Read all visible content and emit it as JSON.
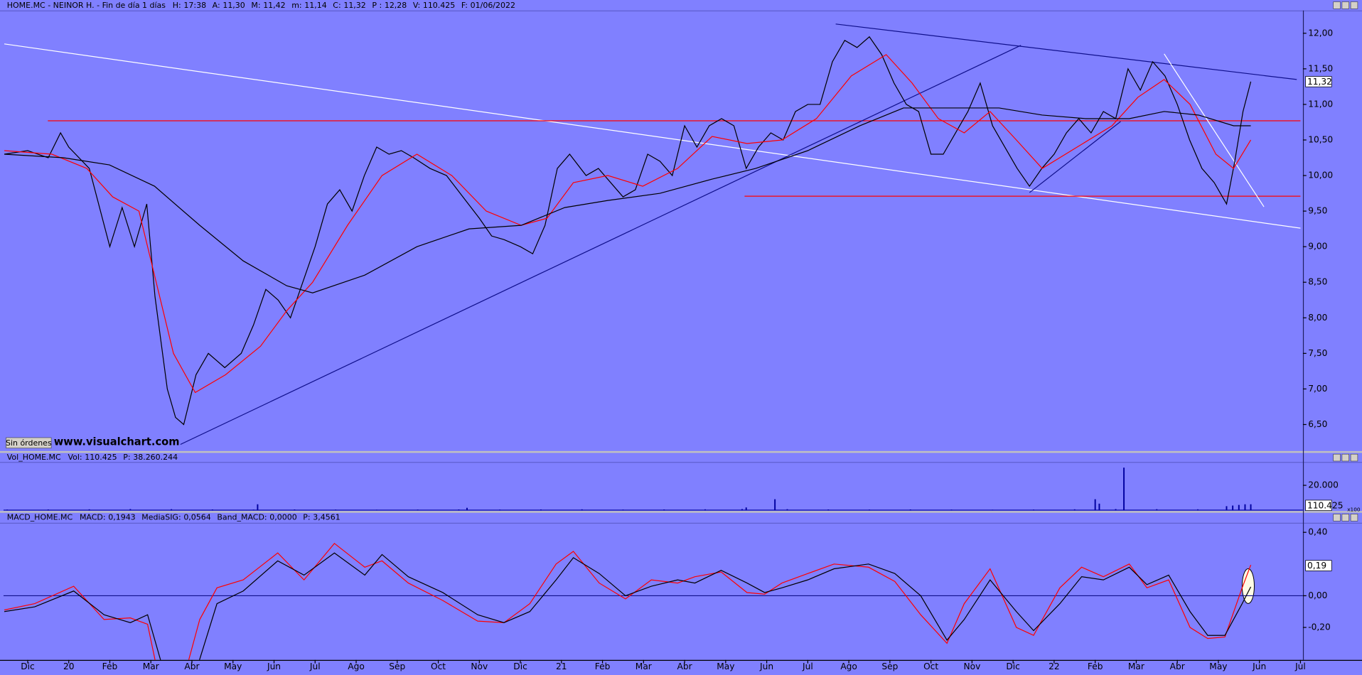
{
  "labels": {
    "orders_button": "Sin órdenes",
    "watermark": "www.visualchart.com"
  },
  "chart_data": [
    {
      "type": "line",
      "title": "HOME.MC - NEINOR H. - Fin de día 1 días",
      "title_color": "#000000",
      "fields": [
        {
          "label": "H:",
          "value": "17:38"
        },
        {
          "label": "A:",
          "value": "11,30"
        },
        {
          "label": "M:",
          "value": "11,42"
        },
        {
          "label": "m:",
          "value": "11,14"
        },
        {
          "label": "C:",
          "value": "11,32"
        },
        {
          "label": "P :",
          "value": "12,28",
          "color": "#ff0000"
        },
        {
          "label": "V:",
          "value": "110.425"
        },
        {
          "label": "F:",
          "value": "01/06/2022"
        }
      ],
      "xlim": [
        -0.59,
        31.06
      ],
      "ylim": [
        6.12,
        12.32
      ],
      "yticks": [
        {
          "value": 6.5,
          "label": "6,50"
        },
        {
          "value": 7,
          "label": "7,00"
        },
        {
          "value": 7.5,
          "label": "7,50"
        },
        {
          "value": 8,
          "label": "8,00"
        },
        {
          "value": 8.5,
          "label": "8,50"
        },
        {
          "value": 9,
          "label": "9,00"
        },
        {
          "value": 9.5,
          "label": "9,50"
        },
        {
          "value": 10,
          "label": "10,00"
        },
        {
          "value": 10.5,
          "label": "10,50"
        },
        {
          "value": 11,
          "label": "11,00"
        },
        {
          "value": 11.5,
          "label": "11,50"
        },
        {
          "value": 12,
          "label": "12,00"
        }
      ],
      "series": [
        {
          "color": "#000000",
          "x": [
            -0.57,
            0,
            0.5,
            0.8,
            1.0,
            1.5,
            2.0,
            2.3,
            2.6,
            2.9,
            3.1,
            3.4,
            3.6,
            3.8,
            4.1,
            4.4,
            4.8,
            5.2,
            5.5,
            5.8,
            6.1,
            6.4,
            6.7,
            7.0,
            7.3,
            7.6,
            7.9,
            8.2,
            8.5,
            8.8,
            9.1,
            9.4,
            9.8,
            10.2,
            10.6,
            11.0,
            11.3,
            11.6,
            12.0,
            12.3,
            12.6,
            12.9,
            13.2,
            13.6,
            13.9,
            14.2,
            14.5,
            14.8,
            15.1,
            15.4,
            15.7,
            16.0,
            16.3,
            16.6,
            16.9,
            17.2,
            17.5,
            17.8,
            18.1,
            18.4,
            18.7,
            19.0,
            19.3,
            19.6,
            19.9,
            20.2,
            20.5,
            20.8,
            21.1,
            21.4,
            21.7,
            22.0,
            22.3,
            22.6,
            22.9,
            23.2,
            23.5,
            23.8,
            24.1,
            24.4,
            24.7,
            25.0,
            25.3,
            25.6,
            25.9,
            26.2,
            26.5,
            26.8,
            27.1,
            27.4,
            27.7,
            28.0,
            28.3,
            28.6,
            28.9,
            29.2,
            29.4,
            29.6,
            29.79
          ],
          "values": [
            10.3,
            10.35,
            10.25,
            10.6,
            10.4,
            10.1,
            9.0,
            9.55,
            9.0,
            9.6,
            8.3,
            7.0,
            6.6,
            6.5,
            7.2,
            7.5,
            7.3,
            7.5,
            7.9,
            8.4,
            8.25,
            8.0,
            8.5,
            9.0,
            9.6,
            9.8,
            9.5,
            10.0,
            10.4,
            10.3,
            10.35,
            10.25,
            10.1,
            10.0,
            9.7,
            9.4,
            9.15,
            9.1,
            9.0,
            8.9,
            9.3,
            10.1,
            10.3,
            10.0,
            10.1,
            9.9,
            9.7,
            9.8,
            10.3,
            10.2,
            10.0,
            10.7,
            10.4,
            10.7,
            10.8,
            10.7,
            10.1,
            10.4,
            10.6,
            10.5,
            10.9,
            11.0,
            11.0,
            11.6,
            11.9,
            11.8,
            11.95,
            11.7,
            11.3,
            11.0,
            10.9,
            10.3,
            10.3,
            10.6,
            10.9,
            11.3,
            10.7,
            10.4,
            10.1,
            9.85,
            10.1,
            10.3,
            10.6,
            10.8,
            10.6,
            10.9,
            10.8,
            11.5,
            11.2,
            11.6,
            11.4,
            11.0,
            10.5,
            10.1,
            9.9,
            9.6,
            10.2,
            10.9,
            11.32
          ]
        },
        {
          "color": "#ff0000",
          "x": [
            -0.57,
            0.59,
            1.44,
            2.07,
            2.71,
            3.13,
            3.55,
            4.08,
            4.82,
            5.67,
            6.31,
            6.94,
            7.79,
            8.63,
            9.48,
            10.33,
            11.17,
            12.02,
            12.65,
            13.29,
            14.13,
            14.98,
            15.83,
            16.67,
            17.52,
            18.37,
            19.21,
            20.06,
            20.91,
            21.54,
            22.18,
            22.81,
            23.44,
            24.08,
            24.71,
            25.56,
            26.41,
            27.04,
            27.68,
            28.31,
            28.94,
            29.37,
            29.79
          ],
          "values": [
            10.35,
            10.3,
            10.1,
            9.7,
            9.5,
            8.5,
            7.5,
            6.95,
            7.2,
            7.6,
            8.1,
            8.5,
            9.3,
            10.0,
            10.3,
            10.0,
            9.5,
            9.3,
            9.4,
            9.9,
            10.0,
            9.85,
            10.1,
            10.55,
            10.45,
            10.5,
            10.8,
            11.4,
            11.7,
            11.3,
            10.8,
            10.6,
            10.9,
            10.5,
            10.1,
            10.4,
            10.7,
            11.1,
            11.35,
            11.0,
            10.3,
            10.1,
            10.5
          ]
        },
        {
          "color": "#000000",
          "x": [
            -0.57,
            0.87,
            1.99,
            3.09,
            4.19,
            5.25,
            6.31,
            6.94,
            8.21,
            9.48,
            10.75,
            12.02,
            13.08,
            14.13,
            15.4,
            16.67,
            17.73,
            19.0,
            20.27,
            21.33,
            22.6,
            23.66,
            24.71,
            25.77,
            26.83,
            27.68,
            28.52,
            29.37,
            29.79
          ],
          "values": [
            10.3,
            10.25,
            10.15,
            9.85,
            9.3,
            8.8,
            8.45,
            8.35,
            8.6,
            9.0,
            9.25,
            9.3,
            9.55,
            9.65,
            9.75,
            9.95,
            10.1,
            10.35,
            10.7,
            10.95,
            10.95,
            10.95,
            10.85,
            10.8,
            10.8,
            10.9,
            10.85,
            10.7,
            10.7
          ]
        }
      ],
      "trendlines": [
        {
          "color": "#ffffff",
          "x": [
            -0.57,
            31.0
          ],
          "values": [
            11.85,
            9.26
          ]
        },
        {
          "color": "#ff0000",
          "x": [
            0.49,
            31.0
          ],
          "values": [
            10.77,
            10.77
          ]
        },
        {
          "color": "#ff0000",
          "x": [
            17.46,
            31.0
          ],
          "values": [
            9.71,
            9.71
          ]
        },
        {
          "color": "#10108c",
          "x": [
            3.72,
            24.19
          ],
          "values": [
            6.22,
            11.83
          ]
        },
        {
          "color": "#10108c",
          "x": [
            19.68,
            30.91
          ],
          "values": [
            12.13,
            11.35
          ]
        },
        {
          "color": "#10108c",
          "x": [
            24.4,
            26.62
          ],
          "values": [
            9.76,
            10.76
          ]
        },
        {
          "color": "#ffffff",
          "x": [
            27.68,
            30.11
          ],
          "values": [
            11.71,
            9.56
          ]
        }
      ],
      "value_box": {
        "value": 11.32,
        "label": "11,32"
      }
    },
    {
      "type": "bar",
      "title": "Vol_HOME.MC",
      "title_color": "#0000ff",
      "fields": [
        {
          "label": "Vol:",
          "value": "110.425"
        },
        {
          "label": "P:",
          "value": "38.260.244",
          "color": "#ff0000"
        }
      ],
      "xlim": [
        -0.59,
        31.06
      ],
      "ylim": [
        0,
        37800
      ],
      "yticks": [
        {
          "value": 20000,
          "label": "20.000"
        }
      ],
      "multiplier": "x100",
      "series": [
        {
          "color": "#0000a0",
          "x": [
            -0.5,
            0.5,
            1.5,
            2.5,
            3.5,
            4.5,
            5.5,
            5.6,
            6.5,
            7.5,
            8.5,
            9.5,
            10.5,
            10.7,
            11.5,
            12.5,
            13.5,
            14.5,
            15.5,
            16.5,
            17.4,
            17.5,
            18.2,
            18.5,
            19.5,
            20.5,
            21.5,
            22.5,
            23.5,
            24.5,
            25.5,
            26.0,
            26.1,
            26.5,
            26.7,
            27.5,
            28.5,
            29.2,
            29.35,
            29.5,
            29.65,
            29.79
          ],
          "values": [
            800,
            900,
            1000,
            1200,
            1100,
            900,
            800,
            5000,
            900,
            800,
            700,
            800,
            900,
            2200,
            800,
            900,
            1000,
            800,
            900,
            1000,
            1200,
            2500,
            9000,
            1100,
            900,
            800,
            900,
            800,
            700,
            800,
            1000,
            9000,
            5500,
            1200,
            34000,
            1100,
            1000,
            3500,
            4000,
            4500,
            5000,
            5000
          ]
        }
      ],
      "value_box": {
        "value": 1104.25,
        "label": "110.425"
      }
    },
    {
      "type": "line",
      "title": "MACD_HOME.MC",
      "title_color": "#ff0000",
      "fields": [
        {
          "label": "MACD:",
          "value": "0,1943",
          "color": "#ff0000"
        },
        {
          "label": "MediaSIG:",
          "value": "0,0564"
        },
        {
          "label": "Band_MACD:",
          "value": "0,0000",
          "color": "#000080"
        },
        {
          "label": "P:",
          "value": "3,4561",
          "color": "#ff0000"
        }
      ],
      "xlim": [
        -0.59,
        31.06
      ],
      "ylim": [
        -0.405,
        0.455
      ],
      "yticks": [
        {
          "value": -0.2,
          "label": "-0,20"
        },
        {
          "value": 0,
          "label": "0,00"
        },
        {
          "value": 0.4,
          "label": "0,40"
        }
      ],
      "reference_line": {
        "value": 0,
        "color": "#10108c"
      },
      "series": [
        {
          "color": "#ff0000",
          "x": [
            -0.57,
            0.17,
            1.12,
            1.86,
            2.5,
            2.92,
            3.34,
            3.77,
            4.19,
            4.61,
            5.25,
            6.09,
            6.73,
            7.47,
            8.21,
            8.63,
            9.27,
            10.11,
            10.96,
            11.6,
            12.23,
            12.87,
            13.29,
            13.92,
            14.56,
            15.19,
            15.83,
            16.25,
            16.89,
            17.52,
            17.95,
            18.37,
            19.0,
            19.64,
            20.48,
            21.12,
            21.75,
            22.39,
            22.81,
            23.44,
            24.08,
            24.5,
            25.14,
            25.67,
            26.2,
            26.83,
            27.26,
            27.79,
            28.31,
            28.74,
            29.16,
            29.58,
            29.79
          ],
          "values": [
            -0.09,
            -0.05,
            0.06,
            -0.15,
            -0.14,
            -0.18,
            -0.7,
            -0.55,
            -0.15,
            0.05,
            0.1,
            0.27,
            0.1,
            0.33,
            0.18,
            0.22,
            0.08,
            -0.03,
            -0.16,
            -0.17,
            -0.05,
            0.2,
            0.28,
            0.08,
            -0.02,
            0.1,
            0.08,
            0.12,
            0.15,
            0.02,
            0.01,
            0.08,
            0.14,
            0.2,
            0.18,
            0.09,
            -0.12,
            -0.3,
            -0.05,
            0.17,
            -0.2,
            -0.25,
            0.05,
            0.18,
            0.12,
            0.2,
            0.05,
            0.1,
            -0.2,
            -0.27,
            -0.26,
            0.05,
            0.1943
          ]
        },
        {
          "color": "#000000",
          "x": [
            -0.57,
            0.17,
            1.12,
            1.86,
            2.5,
            2.92,
            3.34,
            3.77,
            4.19,
            4.61,
            5.25,
            6.09,
            6.73,
            7.47,
            8.21,
            8.63,
            9.27,
            10.11,
            10.96,
            11.6,
            12.23,
            12.87,
            13.29,
            13.92,
            14.56,
            15.19,
            15.83,
            16.25,
            16.89,
            17.52,
            17.95,
            18.37,
            19.0,
            19.64,
            20.48,
            21.12,
            21.75,
            22.39,
            22.81,
            23.44,
            24.08,
            24.5,
            25.14,
            25.67,
            26.2,
            26.83,
            27.26,
            27.79,
            28.31,
            28.74,
            29.16,
            29.58,
            29.79
          ],
          "values": [
            -0.1,
            -0.07,
            0.03,
            -0.12,
            -0.17,
            -0.12,
            -0.5,
            -0.7,
            -0.4,
            -0.05,
            0.03,
            0.22,
            0.13,
            0.27,
            0.13,
            0.26,
            0.12,
            0.02,
            -0.12,
            -0.17,
            -0.1,
            0.1,
            0.24,
            0.14,
            0.0,
            0.06,
            0.1,
            0.08,
            0.16,
            0.08,
            0.02,
            0.05,
            0.1,
            0.17,
            0.2,
            0.14,
            0.0,
            -0.28,
            -0.15,
            0.1,
            -0.1,
            -0.22,
            -0.05,
            0.12,
            0.1,
            0.18,
            0.07,
            0.13,
            -0.1,
            -0.25,
            -0.25,
            -0.05,
            0.0564
          ]
        }
      ],
      "value_box": {
        "value": 0.19,
        "label": "0,19"
      },
      "xticks": [
        {
          "value": 0,
          "label": "Dic"
        },
        {
          "value": 1,
          "label": "20"
        },
        {
          "value": 2,
          "label": "Feb"
        },
        {
          "value": 3,
          "label": "Mar"
        },
        {
          "value": 4,
          "label": "Abr"
        },
        {
          "value": 5,
          "label": "May"
        },
        {
          "value": 6,
          "label": "Jun"
        },
        {
          "value": 7,
          "label": "Jul"
        },
        {
          "value": 8,
          "label": "Ago"
        },
        {
          "value": 9,
          "label": "Sep"
        },
        {
          "value": 10,
          "label": "Oct"
        },
        {
          "value": 11,
          "label": "Nov"
        },
        {
          "value": 12,
          "label": "Dic"
        },
        {
          "value": 13,
          "label": "21"
        },
        {
          "value": 14,
          "label": "Feb"
        },
        {
          "value": 15,
          "label": "Mar"
        },
        {
          "value": 16,
          "label": "Abr"
        },
        {
          "value": 17,
          "label": "May"
        },
        {
          "value": 18,
          "label": "Jun"
        },
        {
          "value": 19,
          "label": "Jul"
        },
        {
          "value": 20,
          "label": "Ago"
        },
        {
          "value": 21,
          "label": "Sep"
        },
        {
          "value": 22,
          "label": "Oct"
        },
        {
          "value": 23,
          "label": "Nov"
        },
        {
          "value": 24,
          "label": "Dic"
        },
        {
          "value": 25,
          "label": "22"
        },
        {
          "value": 26,
          "label": "Feb"
        },
        {
          "value": 27,
          "label": "Mar"
        },
        {
          "value": 28,
          "label": "Abr"
        },
        {
          "value": 29,
          "label": "May"
        },
        {
          "value": 30,
          "label": "Jun"
        },
        {
          "value": 31,
          "label": "Jul"
        }
      ]
    }
  ]
}
